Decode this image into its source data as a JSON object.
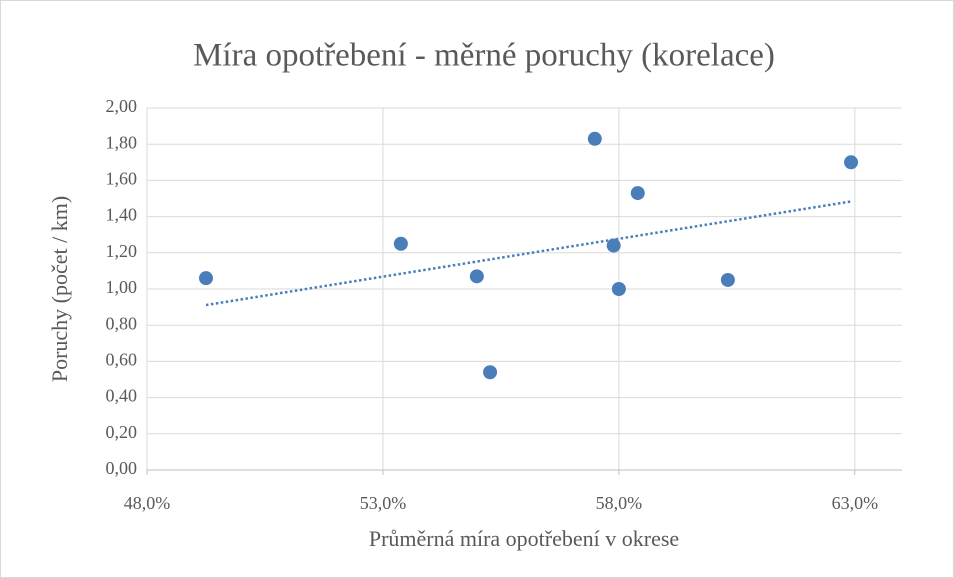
{
  "chart_data": {
    "type": "scatter",
    "title": "Míra opotřebení - měrné poruchy (korelace)",
    "x_label": "Průměrná míra opotřebení v okrese",
    "y_label": "Poruchy (počet / km)",
    "x": [
      49.25,
      53.38,
      54.99,
      55.27,
      57.49,
      57.89,
      58.0,
      58.4,
      60.31,
      62.92
    ],
    "values": [
      1.06,
      1.25,
      1.07,
      0.54,
      1.83,
      1.24,
      1.0,
      1.53,
      1.05,
      1.7
    ],
    "color": "#4a7ebb",
    "trendline": true,
    "trendline_color": "#4a7ebb",
    "grid": true,
    "xlim": [
      48,
      64
    ],
    "xticks": [
      {
        "value": 48,
        "label": "48,0%"
      },
      {
        "value": 53,
        "label": "53,0%"
      },
      {
        "value": 58,
        "label": "58,0%"
      },
      {
        "value": 63,
        "label": "63,0%"
      }
    ],
    "ylim": [
      0,
      2
    ],
    "yticks": [
      {
        "value": 0,
        "label": "0,00"
      },
      {
        "value": 0.2,
        "label": "0,20"
      },
      {
        "value": 0.4,
        "label": "0,40"
      },
      {
        "value": 0.6,
        "label": "0,60"
      },
      {
        "value": 0.8,
        "label": "0,80"
      },
      {
        "value": 1,
        "label": "1,00"
      },
      {
        "value": 1.2,
        "label": "1,20"
      },
      {
        "value": 1.4,
        "label": "1,40"
      },
      {
        "value": 1.6,
        "label": "1,60"
      },
      {
        "value": 1.8,
        "label": "1,80"
      },
      {
        "value": 2,
        "label": "2,00"
      }
    ]
  }
}
